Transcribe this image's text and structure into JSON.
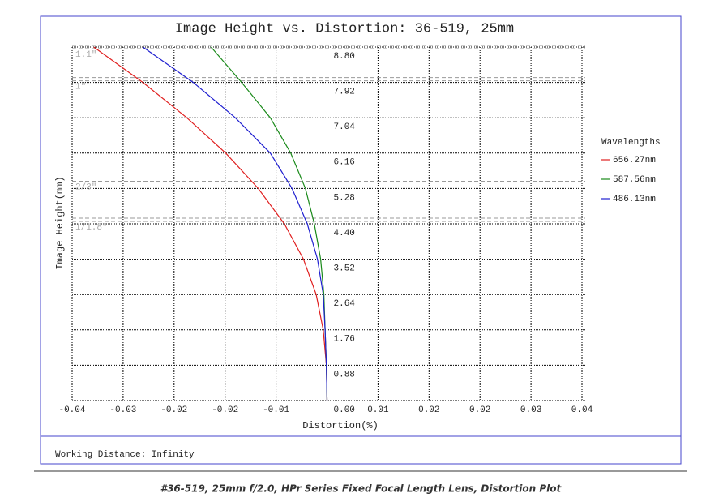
{
  "chart_data": {
    "type": "line",
    "title": "Image Height vs. Distortion: 36-519, 25mm",
    "x_label": "Distortion(%)",
    "y_label": "Image Height(mm)",
    "legend_title": "Wavelengths",
    "footer": "Working Distance: Infinity",
    "caption": "#36-519, 25mm f/2.0, HPr Series Fixed Focal Length Lens, Distortion Plot",
    "xlim": [
      -0.04,
      0.04
    ],
    "ylim": [
      0,
      8.8
    ],
    "xticks": [
      -0.04,
      {
        "value": -0.032,
        "label": "-0.03"
      },
      {
        "value": -0.024,
        "label": "-0.02"
      },
      {
        "value": -0.016,
        "label": "-0.02"
      },
      {
        "value": -0.008,
        "label": "-0.01"
      },
      {
        "value": 0.008,
        "label": "0.01"
      },
      {
        "value": 0.016,
        "label": "0.02"
      },
      {
        "value": 0.024,
        "label": "0.02"
      },
      {
        "value": 0.032,
        "label": "0.03"
      },
      0.04
    ],
    "yticks": [
      {
        "value": 0,
        "label": "0.00"
      },
      0.88,
      1.76,
      2.64,
      3.52,
      {
        "value": 4.4,
        "label": "4.40"
      },
      5.28,
      6.16,
      7.04,
      7.92,
      {
        "value": 8.8,
        "label": "8.80"
      }
    ],
    "grid": true,
    "sensors": [
      {
        "label": "1.1\"",
        "value": 8.8
      },
      {
        "label": "1\"",
        "value": 8.0
      },
      {
        "label": "2/3\"",
        "value": 5.5
      },
      {
        "label": "1/1.8\"",
        "value": 4.5
      }
    ],
    "y": [
      0,
      0.88,
      1.76,
      2.64,
      3.52,
      4.4,
      5.28,
      6.16,
      7.04,
      7.92,
      8.8
    ],
    "series": [
      {
        "name": "656.27nm",
        "color": "#e02020",
        "x": [
          0,
          -0.0001,
          -0.0006,
          -0.0017,
          -0.0037,
          -0.0067,
          -0.0108,
          -0.0159,
          -0.022,
          -0.0289,
          -0.0366
        ]
      },
      {
        "name": "587.56nm",
        "color": "#1a8a1a",
        "x": [
          0,
          -0.0001,
          -0.0003,
          -0.0005,
          -0.001,
          -0.002,
          -0.0034,
          -0.0057,
          -0.0089,
          -0.0134,
          -0.0182
        ]
      },
      {
        "name": "486.13nm",
        "color": "#2020d0",
        "x": [
          0,
          -0.0001,
          -0.0003,
          -0.0006,
          -0.0015,
          -0.0031,
          -0.0055,
          -0.0089,
          -0.0144,
          -0.021,
          -0.0289
        ]
      }
    ]
  }
}
